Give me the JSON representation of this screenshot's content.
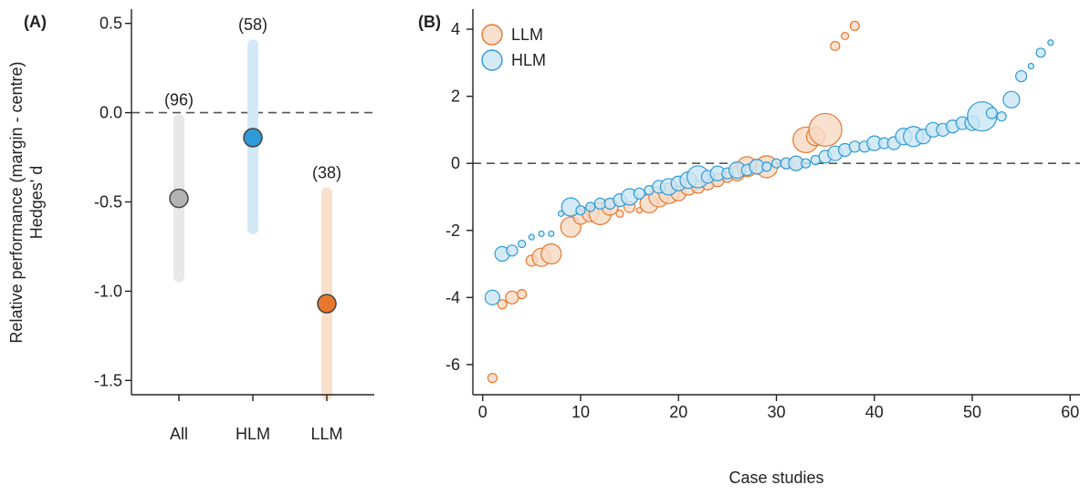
{
  "chart_data": [
    {
      "panel_label": "(A)",
      "type": "scatter",
      "subtype": "point-with-interval",
      "ylabel_line1": "Relative performance (margin - centre)",
      "ylabel_line2": "Hedges' d",
      "categories": [
        "All",
        "HLM",
        "LLM"
      ],
      "counts": [
        "(96)",
        "(58)",
        "(38)"
      ],
      "estimates": [
        -0.48,
        -0.14,
        -1.07
      ],
      "intervals": [
        [
          -0.92,
          -0.04
        ],
        [
          -0.65,
          0.38
        ],
        [
          -1.58,
          -0.45
        ]
      ],
      "ylim": [
        -1.58,
        0.58
      ],
      "yticks": [
        0.5,
        0.0,
        -0.5,
        -1.0,
        -1.5
      ],
      "ytick_labels": [
        "0.5",
        "0.0",
        "-0.5",
        "-1.0",
        "-1.5"
      ],
      "reference_line": 0,
      "colors": {
        "All": {
          "fill": "#b3b3b3",
          "band": "#e8e8e8"
        },
        "HLM": {
          "fill": "#2f9ad6",
          "band": "#d3e9f5"
        },
        "LLM": {
          "fill": "#e8772e",
          "band": "#f9e0cd"
        }
      }
    },
    {
      "panel_label": "(B)",
      "type": "scatter",
      "subtype": "bubble",
      "xlabel": "Case studies",
      "xlim": [
        -1,
        61
      ],
      "ylim": [
        -6.9,
        4.6
      ],
      "xticks": [
        0,
        10,
        20,
        30,
        40,
        50,
        60
      ],
      "yticks": [
        -6,
        -4,
        -2,
        0,
        2,
        4
      ],
      "reference_line": 0,
      "grid": false,
      "legend_position": "top-left",
      "series": [
        {
          "name": "LLM",
          "color": "#e8772e",
          "fill": "#f7d9c4",
          "points": [
            {
              "x": 1,
              "y": -6.4,
              "s": 5
            },
            {
              "x": 2,
              "y": -4.2,
              "s": 5
            },
            {
              "x": 3,
              "y": -4.0,
              "s": 7
            },
            {
              "x": 4,
              "y": -3.9,
              "s": 5
            },
            {
              "x": 5,
              "y": -2.9,
              "s": 6
            },
            {
              "x": 6,
              "y": -2.8,
              "s": 10
            },
            {
              "x": 7,
              "y": -2.7,
              "s": 11
            },
            {
              "x": 9,
              "y": -1.9,
              "s": 11
            },
            {
              "x": 10,
              "y": -1.6,
              "s": 8
            },
            {
              "x": 11,
              "y": -1.5,
              "s": 9
            },
            {
              "x": 12,
              "y": -1.5,
              "s": 12
            },
            {
              "x": 13,
              "y": -1.3,
              "s": 9
            },
            {
              "x": 14,
              "y": -1.5,
              "s": 4
            },
            {
              "x": 15,
              "y": -1.3,
              "s": 6
            },
            {
              "x": 16,
              "y": -1.4,
              "s": 3
            },
            {
              "x": 17,
              "y": -1.2,
              "s": 10
            },
            {
              "x": 18,
              "y": -1.0,
              "s": 11
            },
            {
              "x": 19,
              "y": -0.9,
              "s": 11
            },
            {
              "x": 20,
              "y": -0.9,
              "s": 8
            },
            {
              "x": 21,
              "y": -0.7,
              "s": 9
            },
            {
              "x": 22,
              "y": -0.7,
              "s": 7
            },
            {
              "x": 23,
              "y": -0.6,
              "s": 7
            },
            {
              "x": 24,
              "y": -0.5,
              "s": 7
            },
            {
              "x": 25,
              "y": -0.4,
              "s": 6
            },
            {
              "x": 26,
              "y": -0.3,
              "s": 8
            },
            {
              "x": 27,
              "y": -0.1,
              "s": 11
            },
            {
              "x": 28,
              "y": -0.1,
              "s": 8
            },
            {
              "x": 29,
              "y": -0.1,
              "s": 12
            },
            {
              "x": 31,
              "y": 0.0,
              "s": 6
            },
            {
              "x": 32,
              "y": 0.0,
              "s": 8
            },
            {
              "x": 33,
              "y": 0.7,
              "s": 14
            },
            {
              "x": 34,
              "y": 0.8,
              "s": 10
            },
            {
              "x": 35,
              "y": 1.0,
              "s": 18
            },
            {
              "x": 36,
              "y": 3.5,
              "s": 5
            },
            {
              "x": 37,
              "y": 3.8,
              "s": 4
            },
            {
              "x": 38,
              "y": 4.1,
              "s": 5
            }
          ]
        },
        {
          "name": "HLM",
          "color": "#2f9ad6",
          "fill": "#c9e6f5",
          "points": [
            {
              "x": 1,
              "y": -4.0,
              "s": 8
            },
            {
              "x": 2,
              "y": -2.7,
              "s": 8
            },
            {
              "x": 3,
              "y": -2.6,
              "s": 6
            },
            {
              "x": 4,
              "y": -2.4,
              "s": 4
            },
            {
              "x": 5,
              "y": -2.2,
              "s": 3
            },
            {
              "x": 6,
              "y": -2.1,
              "s": 3
            },
            {
              "x": 7,
              "y": -2.1,
              "s": 3
            },
            {
              "x": 8,
              "y": -1.5,
              "s": 3
            },
            {
              "x": 9,
              "y": -1.3,
              "s": 10
            },
            {
              "x": 10,
              "y": -1.4,
              "s": 5
            },
            {
              "x": 11,
              "y": -1.3,
              "s": 5
            },
            {
              "x": 12,
              "y": -1.2,
              "s": 6
            },
            {
              "x": 13,
              "y": -1.2,
              "s": 6
            },
            {
              "x": 14,
              "y": -1.1,
              "s": 7
            },
            {
              "x": 15,
              "y": -1.0,
              "s": 9
            },
            {
              "x": 16,
              "y": -0.9,
              "s": 6
            },
            {
              "x": 17,
              "y": -0.8,
              "s": 5
            },
            {
              "x": 18,
              "y": -0.7,
              "s": 7
            },
            {
              "x": 19,
              "y": -0.7,
              "s": 9
            },
            {
              "x": 20,
              "y": -0.6,
              "s": 8
            },
            {
              "x": 21,
              "y": -0.5,
              "s": 9
            },
            {
              "x": 22,
              "y": -0.4,
              "s": 12
            },
            {
              "x": 23,
              "y": -0.4,
              "s": 7
            },
            {
              "x": 24,
              "y": -0.3,
              "s": 8
            },
            {
              "x": 25,
              "y": -0.3,
              "s": 6
            },
            {
              "x": 26,
              "y": -0.2,
              "s": 9
            },
            {
              "x": 27,
              "y": -0.2,
              "s": 6
            },
            {
              "x": 28,
              "y": -0.1,
              "s": 8
            },
            {
              "x": 29,
              "y": -0.1,
              "s": 5
            },
            {
              "x": 30,
              "y": 0.0,
              "s": 5
            },
            {
              "x": 31,
              "y": 0.0,
              "s": 6
            },
            {
              "x": 32,
              "y": 0.0,
              "s": 8
            },
            {
              "x": 33,
              "y": 0.0,
              "s": 5
            },
            {
              "x": 34,
              "y": 0.1,
              "s": 5
            },
            {
              "x": 35,
              "y": 0.2,
              "s": 7
            },
            {
              "x": 36,
              "y": 0.3,
              "s": 8
            },
            {
              "x": 37,
              "y": 0.4,
              "s": 7
            },
            {
              "x": 38,
              "y": 0.5,
              "s": 6
            },
            {
              "x": 39,
              "y": 0.5,
              "s": 6
            },
            {
              "x": 40,
              "y": 0.6,
              "s": 8
            },
            {
              "x": 41,
              "y": 0.6,
              "s": 6
            },
            {
              "x": 42,
              "y": 0.6,
              "s": 7
            },
            {
              "x": 43,
              "y": 0.8,
              "s": 9
            },
            {
              "x": 44,
              "y": 0.8,
              "s": 11
            },
            {
              "x": 45,
              "y": 0.8,
              "s": 8
            },
            {
              "x": 46,
              "y": 1.0,
              "s": 8
            },
            {
              "x": 47,
              "y": 1.0,
              "s": 7
            },
            {
              "x": 48,
              "y": 1.1,
              "s": 7
            },
            {
              "x": 49,
              "y": 1.2,
              "s": 7
            },
            {
              "x": 50,
              "y": 1.2,
              "s": 8
            },
            {
              "x": 51,
              "y": 1.4,
              "s": 16
            },
            {
              "x": 52,
              "y": 1.5,
              "s": 6
            },
            {
              "x": 53,
              "y": 1.4,
              "s": 5
            },
            {
              "x": 54,
              "y": 1.9,
              "s": 9
            },
            {
              "x": 55,
              "y": 2.6,
              "s": 6
            },
            {
              "x": 56,
              "y": 2.9,
              "s": 3
            },
            {
              "x": 57,
              "y": 3.3,
              "s": 5
            },
            {
              "x": 58,
              "y": 3.6,
              "s": 3
            }
          ]
        }
      ]
    }
  ]
}
